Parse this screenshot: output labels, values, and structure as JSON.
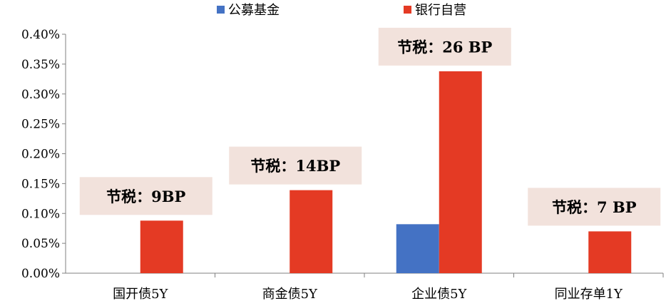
{
  "chart_data": {
    "type": "bar",
    "categories": [
      "国开债5Y",
      "商金债5Y",
      "企业债5Y",
      "同业存单1Y"
    ],
    "series": [
      {
        "name": "公募基金",
        "color": "#4472c4",
        "values": [
          0,
          0,
          0.082,
          0
        ]
      },
      {
        "name": "银行自营",
        "color": "#e43a24",
        "values": [
          0.088,
          0.139,
          0.338,
          0.07
        ]
      }
    ],
    "ylim": [
      0,
      0.4
    ],
    "yticks": [
      "0.00%",
      "0.05%",
      "0.10%",
      "0.15%",
      "0.20%",
      "0.25%",
      "0.30%",
      "0.35%",
      "0.40%"
    ],
    "legend_position": "top",
    "grid": false,
    "annotations": [
      "节税：9BP",
      "节税：14BP",
      "节税：26 BP",
      "节税：7 BP"
    ],
    "annotation_bg": "#f2e2dc"
  }
}
